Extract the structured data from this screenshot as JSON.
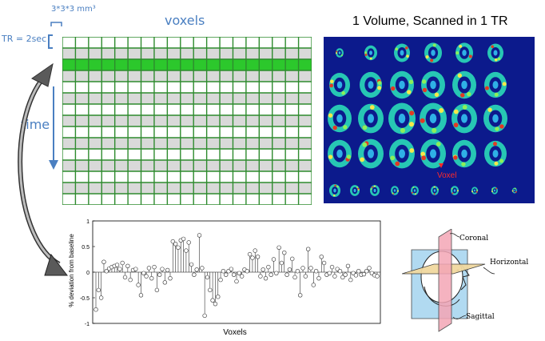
{
  "header": {
    "voxel_size": "3*3*3 mm³",
    "voxels_label": "voxels",
    "tr_label": "TR = 2sec",
    "time_label": "time",
    "volume_title": "1 Volume, Scanned in 1 TR"
  },
  "voxel_grid": {
    "rows": 15,
    "cols": 19,
    "highlight_row": 2,
    "line_color": "#2e8b2e",
    "highlight_color": "#2cc82c",
    "shade_color": "#d9d9d9"
  },
  "brain_panel": {
    "voxel_label": "Voxel",
    "background": "#0c1a8c"
  },
  "chart_data": {
    "type": "scatter",
    "style": "stem",
    "xlabel": "Voxels",
    "ylabel": "% deviation from baseline",
    "ylim": [
      -1,
      1
    ],
    "yticks": [
      "1",
      "0.5",
      "0",
      "-0.5",
      "-1"
    ],
    "values": [
      -0.73,
      -0.35,
      -0.5,
      0.2,
      0.02,
      0.07,
      0.1,
      0.12,
      0.14,
      0.06,
      0.18,
      -0.1,
      0.12,
      -0.15,
      0.04,
      0.06,
      -0.25,
      -0.45,
      -0.02,
      -0.08,
      0.08,
      -0.12,
      0.1,
      -0.35,
      -0.05,
      0.06,
      -0.2,
      0.04,
      -0.12,
      0.6,
      0.55,
      0.48,
      0.62,
      0.65,
      0.42,
      0.58,
      0.15,
      -0.05,
      0.05,
      0.72,
      0.08,
      -0.85,
      -0.1,
      -0.35,
      -0.55,
      -0.62,
      -0.48,
      -0.15,
      0.02,
      -0.05,
      0.02,
      0.06,
      -0.05,
      -0.18,
      -0.02,
      -0.08,
      0.05,
      0.02,
      0.35,
      0.28,
      0.42,
      0.3,
      -0.08,
      0.05,
      -0.12,
      0.1,
      -0.05,
      0.25,
      -0.02,
      0.48,
      0.18,
      0.38,
      -0.05,
      0.05,
      0.26,
      -0.1,
      0.02,
      -0.45,
      0.08,
      -0.08,
      0.45,
      0.08,
      -0.25,
      0.02,
      -0.12,
      0.3,
      0.18,
      -0.05,
      -0.02,
      0.1,
      -0.08,
      0.06,
      0.02,
      -0.1,
      -0.05,
      0.12,
      -0.15,
      -0.02,
      -0.06,
      0.02,
      -0.05,
      -0.04,
      0.02,
      0.08,
      -0.02,
      -0.06,
      -0.08
    ]
  },
  "planes": {
    "coronal": "Coronal",
    "horizontal": "Horizontal",
    "sagittal": "Sagittal"
  }
}
